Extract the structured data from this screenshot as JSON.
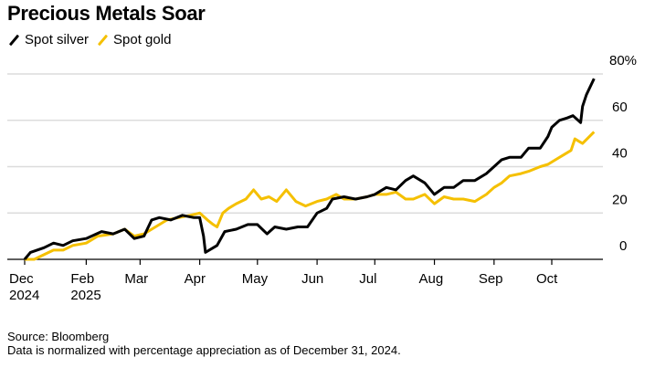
{
  "chart_data": {
    "type": "line",
    "title": "Precious Metals Soar",
    "xlabel": "",
    "ylabel": "",
    "ylim": [
      0,
      80
    ],
    "y_ticks": [
      "0",
      "20",
      "40",
      "60",
      "80%"
    ],
    "y_tick_values": [
      0,
      20,
      40,
      60,
      80
    ],
    "x_unit": "days since Dec 31, 2024",
    "x_ticks": [
      {
        "day": 0,
        "label": "Dec",
        "sub": "2024"
      },
      {
        "day": 32,
        "label": "Feb",
        "sub": "2025"
      },
      {
        "day": 60,
        "label": "Mar",
        "sub": ""
      },
      {
        "day": 91,
        "label": "Apr",
        "sub": ""
      },
      {
        "day": 121,
        "label": "May",
        "sub": ""
      },
      {
        "day": 152,
        "label": "Jun",
        "sub": ""
      },
      {
        "day": 182,
        "label": "Jul",
        "sub": ""
      },
      {
        "day": 213,
        "label": "Aug",
        "sub": ""
      },
      {
        "day": 244,
        "label": "Sep",
        "sub": ""
      },
      {
        "day": 274,
        "label": "Oct",
        "sub": ""
      }
    ],
    "grid": true,
    "legend_position": "top-left",
    "series": [
      {
        "name": "Spot silver",
        "color": "#000000",
        "x": [
          0,
          3,
          10,
          15,
          20,
          25,
          32,
          40,
          46,
          52,
          57,
          62,
          66,
          70,
          76,
          82,
          88,
          91,
          93,
          94,
          98,
          100,
          104,
          110,
          116,
          121,
          126,
          130,
          136,
          142,
          147,
          152,
          157,
          160,
          166,
          172,
          178,
          182,
          188,
          193,
          198,
          202,
          208,
          213,
          218,
          223,
          228,
          234,
          240,
          244,
          248,
          252,
          258,
          262,
          268,
          272,
          274,
          278,
          282,
          285,
          289,
          290,
          292,
          296
        ],
        "y": [
          0,
          3,
          5,
          7,
          6,
          8,
          9,
          12,
          11,
          13,
          9,
          10,
          17,
          18,
          17,
          19,
          18,
          18,
          10,
          3,
          5,
          6,
          12,
          13,
          15,
          15,
          11,
          14,
          13,
          14,
          14,
          20,
          22,
          26,
          27,
          26,
          27,
          28,
          31,
          30,
          34,
          36,
          33,
          28,
          31,
          31,
          34,
          34,
          37,
          40,
          43,
          44,
          44,
          48,
          48,
          53,
          57,
          60,
          61,
          62,
          59,
          66,
          71,
          78
        ]
      },
      {
        "name": "Spot gold",
        "color": "#F5C000",
        "x": [
          0,
          5,
          10,
          15,
          20,
          25,
          32,
          38,
          46,
          52,
          57,
          62,
          68,
          74,
          80,
          86,
          91,
          95,
          98,
          100,
          103,
          106,
          110,
          115,
          119,
          123,
          127,
          131,
          136,
          141,
          146,
          152,
          157,
          162,
          166,
          172,
          178,
          182,
          188,
          193,
          198,
          202,
          208,
          213,
          218,
          223,
          228,
          234,
          240,
          244,
          248,
          252,
          258,
          262,
          268,
          272,
          276,
          280,
          284,
          286,
          290,
          296
        ],
        "y": [
          0,
          0,
          2,
          4,
          4,
          6,
          7,
          10,
          11,
          13,
          10,
          11,
          14,
          17,
          18,
          19,
          20,
          17,
          15,
          14,
          20,
          22,
          24,
          26,
          30,
          26,
          27,
          25,
          30,
          25,
          23,
          25,
          26,
          28,
          26,
          26,
          27,
          28,
          28,
          29,
          26,
          26,
          28,
          24,
          27,
          26,
          26,
          25,
          28,
          31,
          33,
          36,
          37,
          38,
          40,
          41,
          43,
          45,
          47,
          52,
          50,
          55
        ]
      }
    ]
  },
  "legend": {
    "silver": "Spot silver",
    "gold": "Spot gold"
  },
  "footer": {
    "source": "Source: Bloomberg",
    "note": "Data is normalized with percentage appreciation as of December 31, 2024."
  }
}
